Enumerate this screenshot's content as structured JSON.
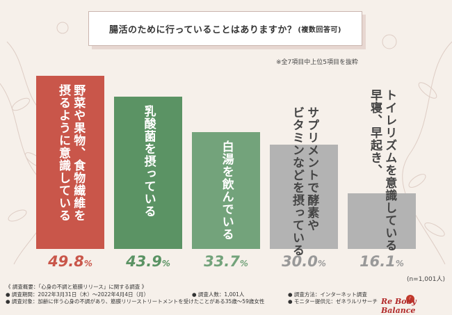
{
  "header": {
    "question": "腸活のために行っていることはありますか？",
    "question_sub": "(複数回答可)",
    "note": "※全7項目中上位5項目を抜粋"
  },
  "chart_data": {
    "type": "bar",
    "categories": [
      "野菜や果物、食物繊維を摂るように意識している",
      "乳酸菌を摂っている",
      "白湯を飲んでいる",
      "サプリメントで酵素やビタミンなどを摂っている",
      "早寝、早起き、トイレリズムを意識している"
    ],
    "values": [
      49.8,
      43.9,
      33.7,
      30.0,
      16.1
    ],
    "value_labels": [
      "49.8",
      "43.9",
      "33.7",
      "30.0",
      "16.1"
    ],
    "unit": "%",
    "ylim": [
      0,
      50
    ],
    "grid": false,
    "colors": {
      "bars": [
        "#c9564a",
        "#5b9364",
        "#73a37b",
        "#b3b3b3",
        "#b3b3b3"
      ],
      "labels": [
        "#ffffff",
        "#ffffff",
        "#ffffff",
        "#444444",
        "#444444"
      ],
      "pct": [
        "#c9564a",
        "#5b9364",
        "#73a37b",
        "#999999",
        "#999999"
      ]
    },
    "label_lines": [
      "野菜や果物、食物繊維を\n摂るように意識している",
      "乳酸菌を摂っている",
      "白湯を飲んでいる",
      "サプリメントで酵素や\nビタミンなどを摂っている",
      "トイレリズムを意識している\n早寝、早起き、"
    ]
  },
  "sample_size": "(n=1,001人)",
  "footer": {
    "line1": "《 調査概要：「心身の不調と筋膜リリース」に関する調査 》",
    "period": "● 調査期間：2022年3月31日（木）～2022年4月4日（月）",
    "count": "● 調査人数：1,001人",
    "method": "● 調査方法：インターネット調査",
    "target": "● 調査対象：加齢に伴う心身の不調があり、筋膜リリーストリートメントを受けたことがある35歳～59歳女性",
    "provider": "● モニター提供元：ゼネラルリサーチ"
  },
  "logo": {
    "text": "Re Body Balance"
  }
}
